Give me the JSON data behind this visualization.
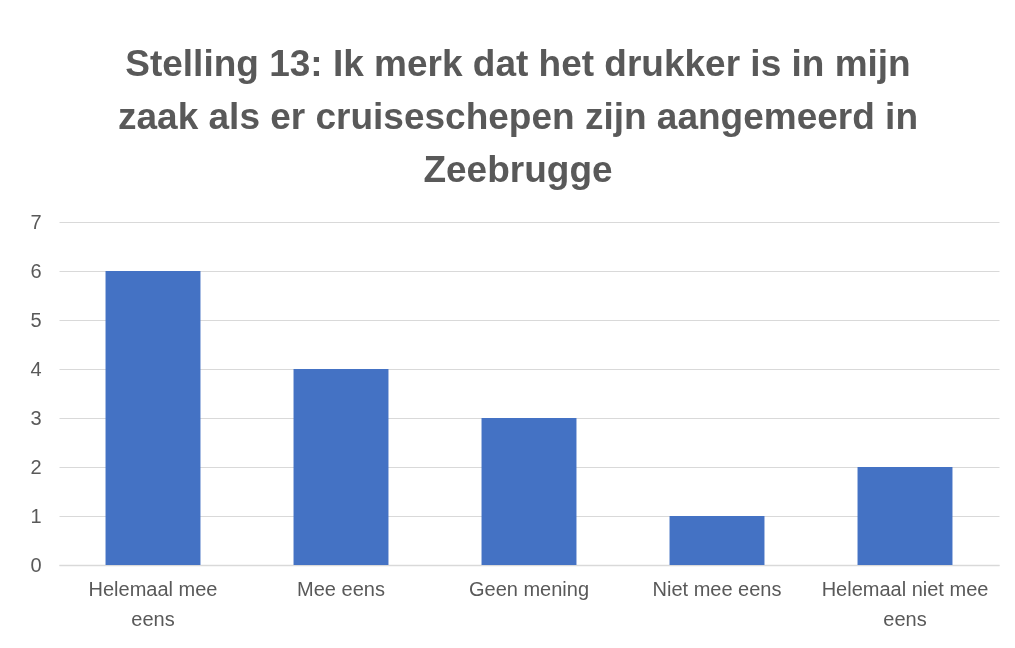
{
  "chart_data": {
    "type": "bar",
    "title": "Stelling 13: Ik merk dat het drukker is in mijn zaak als er cruiseschepen zijn aangemeerd in Zeebrugge",
    "categories": [
      "Helemaal mee eens",
      "Mee eens",
      "Geen mening",
      "Niet mee eens",
      "Helemaal niet mee eens"
    ],
    "values": [
      6,
      4,
      3,
      1,
      2
    ],
    "color": "#4472c4",
    "ylim": [
      0,
      7
    ],
    "yticks": [
      0,
      1,
      2,
      3,
      4,
      5,
      6,
      7
    ],
    "grid": "y"
  }
}
